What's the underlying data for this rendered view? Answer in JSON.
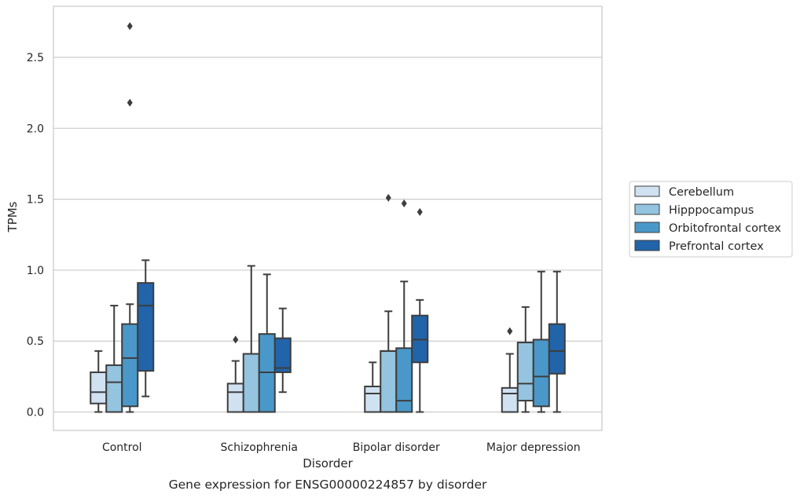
{
  "chart_data": {
    "type": "box",
    "caption": "Gene expression for ENSG00000224857 by disorder",
    "xlabel": "Disorder",
    "ylabel": "TPMs",
    "ylim": [
      -0.13,
      2.86
    ],
    "yticks": [
      "0.0",
      "0.5",
      "1.0",
      "1.5",
      "2.0",
      "2.5"
    ],
    "grid": "horizontal",
    "legend_position": "right",
    "categories": [
      "Control",
      "Schizophrenia",
      "Bipolar disorder",
      "Major depression"
    ],
    "series": [
      {
        "name": "Cerebellum",
        "color": "#d0e1f2",
        "boxes": [
          {
            "whislo": 0.0,
            "q1": 0.06,
            "med": 0.14,
            "q3": 0.28,
            "whishi": 0.43,
            "fliers": []
          },
          {
            "whislo": 0.0,
            "q1": 0.0,
            "med": 0.14,
            "q3": 0.2,
            "whishi": 0.36,
            "fliers": [
              0.51
            ]
          },
          {
            "whislo": 0.0,
            "q1": 0.0,
            "med": 0.13,
            "q3": 0.18,
            "whishi": 0.35,
            "fliers": []
          },
          {
            "whislo": 0.0,
            "q1": 0.0,
            "med": 0.13,
            "q3": 0.17,
            "whishi": 0.41,
            "fliers": [
              0.57
            ]
          }
        ]
      },
      {
        "name": "Hipppocampus",
        "color": "#94c4df",
        "boxes": [
          {
            "whislo": 0.0,
            "q1": 0.0,
            "med": 0.21,
            "q3": 0.33,
            "whishi": 0.75,
            "fliers": []
          },
          {
            "whislo": 0.0,
            "q1": 0.0,
            "med": 0.41,
            "q3": 0.41,
            "whishi": 1.03,
            "fliers": []
          },
          {
            "whislo": 0.0,
            "q1": 0.0,
            "med": 0.43,
            "q3": 0.43,
            "whishi": 0.71,
            "fliers": [
              1.51
            ]
          },
          {
            "whislo": 0.0,
            "q1": 0.08,
            "med": 0.2,
            "q3": 0.49,
            "whishi": 0.74,
            "fliers": []
          }
        ]
      },
      {
        "name": "Orbitofrontal cortex",
        "color": "#4a98c9",
        "boxes": [
          {
            "whislo": 0.0,
            "q1": 0.04,
            "med": 0.38,
            "q3": 0.62,
            "whishi": 0.76,
            "fliers": [
              2.18,
              2.72
            ]
          },
          {
            "whislo": 0.0,
            "q1": 0.0,
            "med": 0.28,
            "q3": 0.55,
            "whishi": 0.97,
            "fliers": []
          },
          {
            "whislo": 0.0,
            "q1": 0.0,
            "med": 0.08,
            "q3": 0.45,
            "whishi": 0.92,
            "fliers": [
              1.47
            ]
          },
          {
            "whislo": 0.0,
            "q1": 0.04,
            "med": 0.25,
            "q3": 0.51,
            "whishi": 0.99,
            "fliers": []
          }
        ]
      },
      {
        "name": "Prefrontal cortex",
        "color": "#2164aa",
        "boxes": [
          {
            "whislo": 0.11,
            "q1": 0.29,
            "med": 0.75,
            "q3": 0.91,
            "whishi": 1.07,
            "fliers": []
          },
          {
            "whislo": 0.14,
            "q1": 0.28,
            "med": 0.31,
            "q3": 0.52,
            "whishi": 0.73,
            "fliers": []
          },
          {
            "whislo": 0.0,
            "q1": 0.35,
            "med": 0.51,
            "q3": 0.68,
            "whishi": 0.79,
            "fliers": [
              1.41
            ]
          },
          {
            "whislo": 0.0,
            "q1": 0.27,
            "med": 0.43,
            "q3": 0.62,
            "whishi": 0.99,
            "fliers": []
          }
        ]
      }
    ]
  }
}
